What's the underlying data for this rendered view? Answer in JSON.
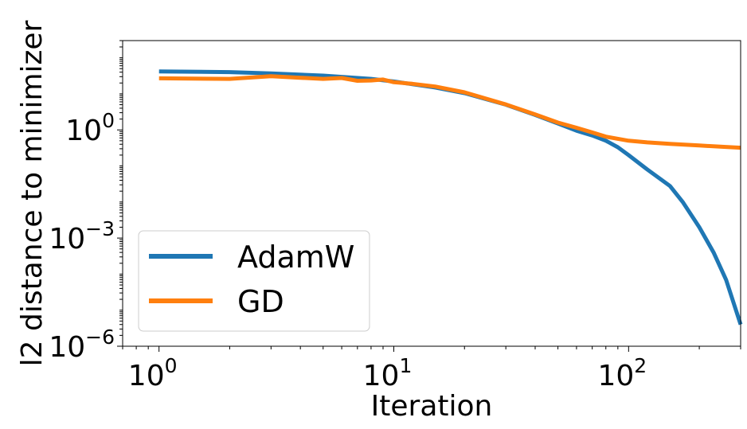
{
  "chart_data": {
    "type": "line",
    "title": "",
    "xlabel": "Iteration",
    "ylabel": "l2 distance to minimizer",
    "xscale": "log",
    "yscale": "log",
    "xlim": [
      0.7,
      300
    ],
    "ylim": [
      1e-06,
      300
    ],
    "grid": false,
    "legend_position": "lower-left",
    "x_ticks": [
      {
        "base": "10",
        "exp": "0"
      },
      {
        "base": "10",
        "exp": "1"
      },
      {
        "base": "10",
        "exp": "2"
      }
    ],
    "y_ticks": [
      {
        "base": "10",
        "exp": "0"
      },
      {
        "base": "10",
        "exp": "−3"
      },
      {
        "base": "10",
        "exp": "−6"
      }
    ],
    "series": [
      {
        "name": "AdamW",
        "color": "#1f77b4",
        "x": [
          1,
          2,
          3,
          5,
          8,
          10,
          15,
          20,
          30,
          40,
          50,
          60,
          70,
          80,
          90,
          100,
          120,
          150,
          170,
          200,
          230,
          260,
          300
        ],
        "y": [
          42,
          40,
          37,
          32,
          26,
          22,
          15,
          10.5,
          5.0,
          2.6,
          1.5,
          0.95,
          0.7,
          0.5,
          0.33,
          0.2,
          0.08,
          0.028,
          0.01,
          0.002,
          0.0004,
          7e-05,
          4e-06
        ]
      },
      {
        "name": "GD",
        "color": "#ff7f0e",
        "x": [
          1,
          2,
          3,
          4,
          5,
          6,
          7,
          8,
          9,
          10,
          12,
          15,
          20,
          30,
          40,
          50,
          60,
          70,
          80,
          100,
          120,
          150,
          200,
          250,
          300
        ],
        "y": [
          27,
          26,
          31,
          28,
          26,
          27.5,
          23,
          23.5,
          25,
          21,
          19,
          16,
          11,
          5.1,
          2.7,
          1.6,
          1.15,
          0.85,
          0.65,
          0.5,
          0.45,
          0.41,
          0.37,
          0.34,
          0.32
        ]
      }
    ]
  }
}
